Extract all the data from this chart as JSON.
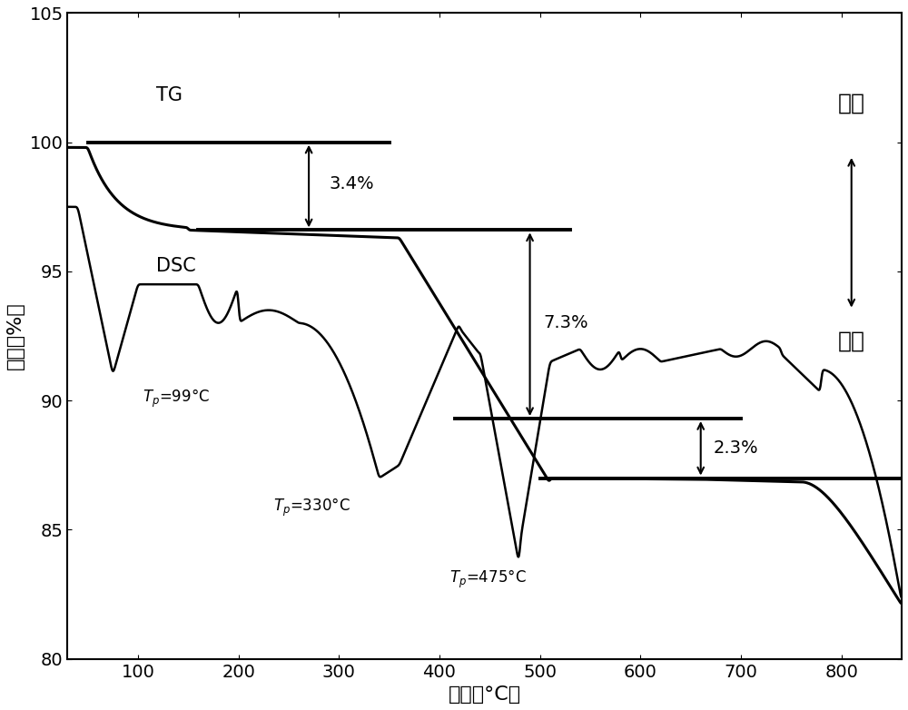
{
  "xlabel": "温度（°C）",
  "ylabel": "重量（%）",
  "xlim": [
    30,
    860
  ],
  "ylim": [
    80,
    105
  ],
  "xticks": [
    100,
    200,
    300,
    400,
    500,
    600,
    700,
    800
  ],
  "yticks": [
    80,
    85,
    90,
    95,
    100,
    105
  ],
  "line_color": "#000000",
  "label_fontsize": 16,
  "tick_fontsize": 14,
  "annot_fontsize": 14,
  "chinese_fontsize": 18,
  "tg_label": "TG",
  "dsc_label": "DSC",
  "tp1_label": "T$_p$=99°C",
  "tp2_label": "T$_p$=330°C",
  "tp3_label": "T$_p$=475°C",
  "pct1_label": "3.4%",
  "pct2_label": "7.3%",
  "pct3_label": "2.3%",
  "exo_label": "放热",
  "endo_label": "吸热",
  "ref_line1_y": 100.0,
  "ref_line1_x1": 50,
  "ref_line1_x2": 350,
  "ref_line2_y": 96.6,
  "ref_line2_x1": 160,
  "ref_line2_x2": 530,
  "ref_line3_y": 89.3,
  "ref_line3_x1": 415,
  "ref_line3_x2": 700,
  "ref_line4_y": 87.0,
  "ref_line4_x1": 500,
  "ref_line4_x2": 860
}
